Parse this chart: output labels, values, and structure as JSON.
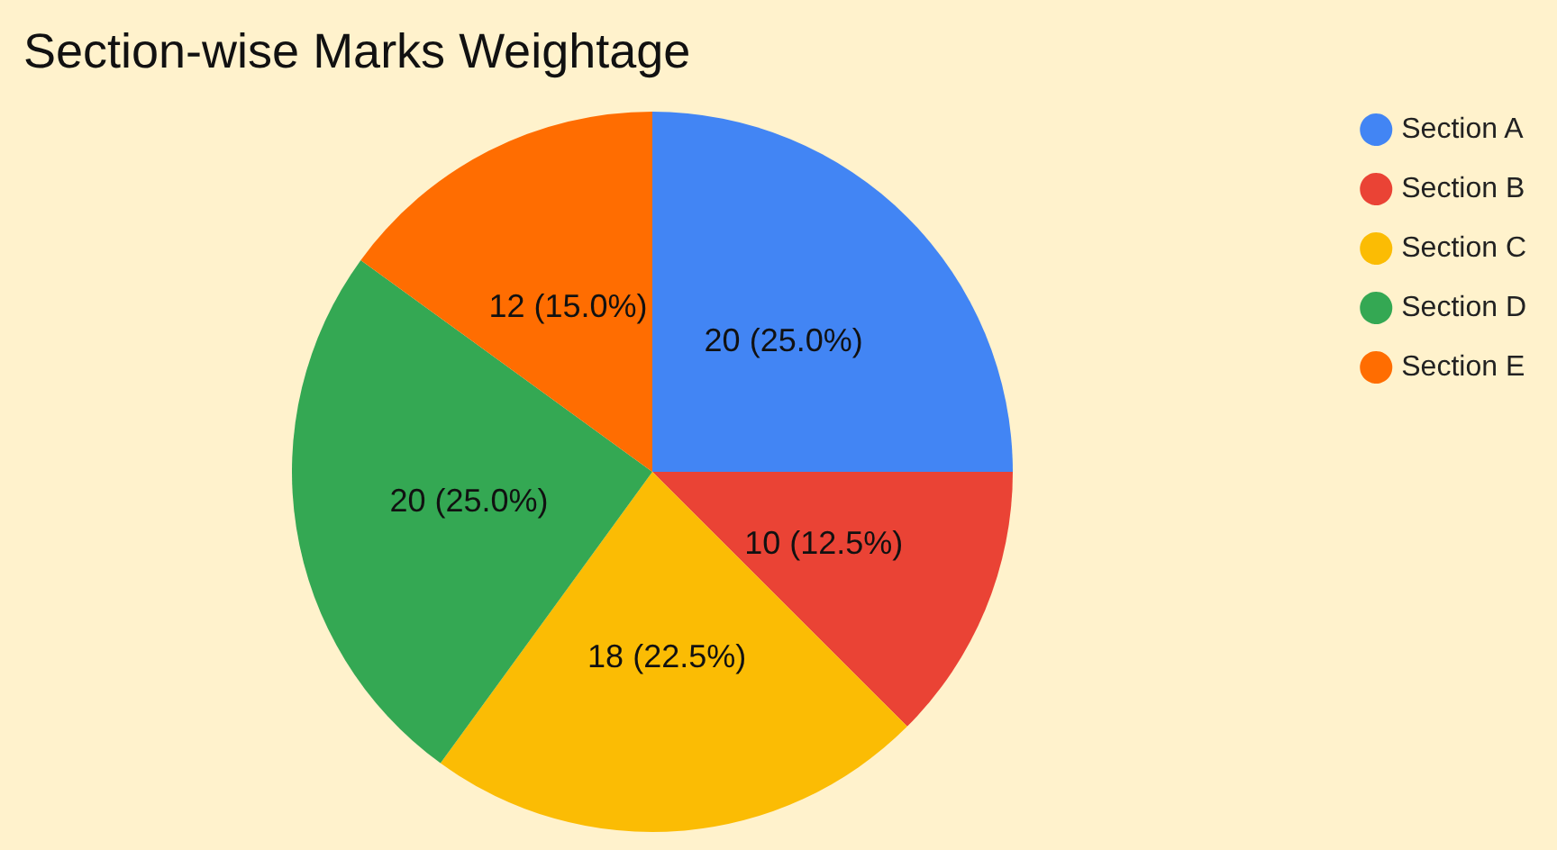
{
  "chart_data": {
    "type": "pie",
    "title": "Section-wise Marks Weightage",
    "categories": [
      "Section A",
      "Section B",
      "Section C",
      "Section D",
      "Section E"
    ],
    "values": [
      20,
      10,
      18,
      20,
      12
    ],
    "colors": [
      "#4285f4",
      "#ea4335",
      "#fbbc04",
      "#34a853",
      "#ff6d01"
    ],
    "value_labels": [
      "20 (25.0%)",
      "10 (12.5%)",
      "18 (22.5%)",
      "20 (25.0%)",
      "12 (15.0%)"
    ],
    "legend": "top right"
  }
}
